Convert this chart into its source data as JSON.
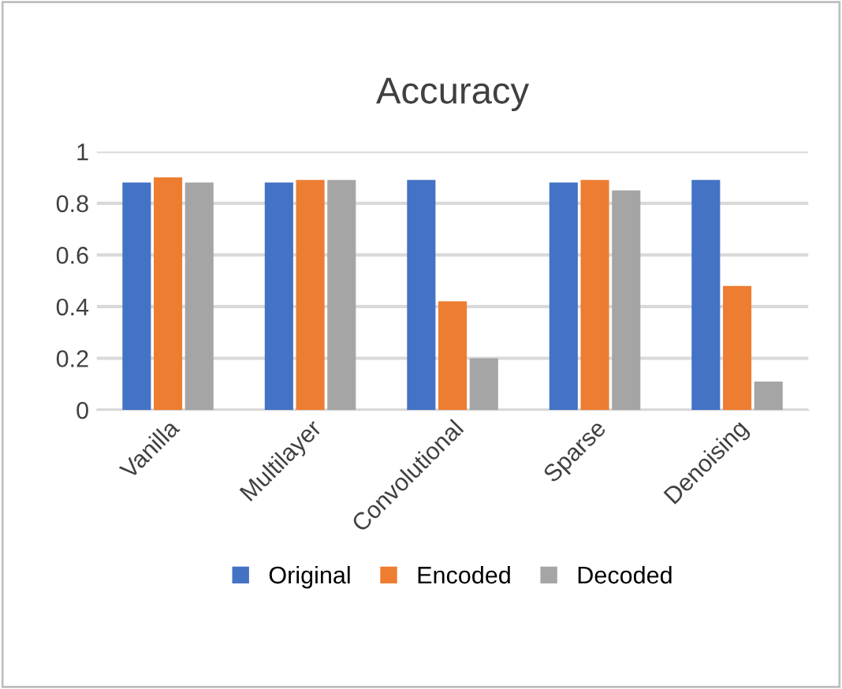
{
  "chart_data": {
    "type": "bar",
    "title": "Accuracy",
    "categories": [
      "Vanilla",
      "Multilayer",
      "Convolutional",
      "Sparse",
      "Denoising"
    ],
    "series": [
      {
        "name": "Original",
        "color": "#4472c4",
        "values": [
          0.88,
          0.88,
          0.89,
          0.88,
          0.89
        ]
      },
      {
        "name": "Encoded",
        "color": "#ed7d31",
        "values": [
          0.9,
          0.89,
          0.42,
          0.89,
          0.48
        ]
      },
      {
        "name": "Decoded",
        "color": "#a5a5a5",
        "values": [
          0.88,
          0.89,
          0.2,
          0.85,
          0.11
        ]
      }
    ],
    "ylim": [
      0,
      1
    ],
    "yticks": [
      0,
      0.2,
      0.4,
      0.6,
      0.8,
      1
    ],
    "grid": "y",
    "legend": "bottom"
  }
}
